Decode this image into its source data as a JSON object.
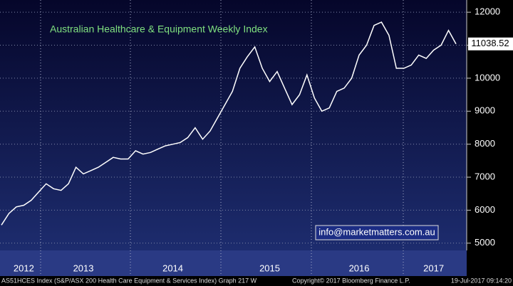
{
  "chart_data": {
    "type": "line",
    "title": "Australian Healthcare & Equipment Weekly Index",
    "watermark": "info@marketmatters.com.au",
    "footer_left": "AS51HCES Index (S&P/ASX 200 Health Care Equipment & Services Index) Graph 217  W",
    "footer_center": "Copyright© 2017 Bloomberg Finance L.P.",
    "footer_right": "19-Jul-2017 09:14:20",
    "categories": [
      null,
      null,
      null,
      "2012",
      null,
      null,
      null,
      null,
      null,
      null,
      null,
      "2013",
      null,
      null,
      null,
      null,
      null,
      null,
      null,
      null,
      null,
      null,
      null,
      "2014",
      null,
      null,
      null,
      null,
      null,
      null,
      null,
      null,
      null,
      null,
      null,
      null,
      "2015",
      null,
      null,
      null,
      null,
      null,
      null,
      null,
      null,
      null,
      null,
      null,
      "2016",
      null,
      null,
      null,
      null,
      null,
      null,
      null,
      null,
      null,
      "2017",
      null,
      null,
      null
    ],
    "values": [
      5550,
      5900,
      6100,
      6150,
      6300,
      6550,
      6800,
      6650,
      6600,
      6800,
      7300,
      7100,
      7200,
      7300,
      7450,
      7600,
      7550,
      7550,
      7800,
      7700,
      7750,
      7850,
      7950,
      8000,
      8050,
      8200,
      8500,
      8150,
      8400,
      8800,
      9200,
      9600,
      10300,
      10650,
      10950,
      10300,
      9900,
      10200,
      9700,
      9200,
      9500,
      10100,
      9400,
      9000,
      9100,
      9600,
      9700,
      10000,
      10700,
      11000,
      11600,
      11700,
      11300,
      10300,
      10300,
      10400,
      10700,
      10600,
      10850,
      11000,
      11450,
      11038.52
    ],
    "color": "#ffffff",
    "ylim": [
      4780,
      12370
    ],
    "yticks": [
      5000,
      6000,
      7000,
      8000,
      9000,
      10000,
      11000,
      12000
    ],
    "grid": true
  }
}
